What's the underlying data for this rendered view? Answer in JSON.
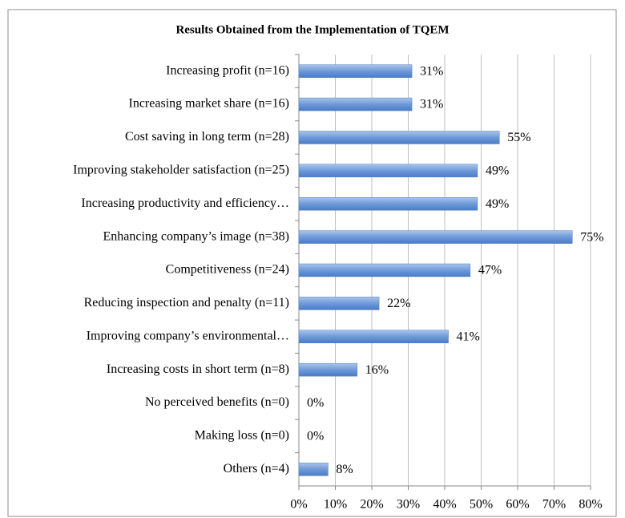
{
  "chart_data": {
    "type": "hbar",
    "title": "Results Obtained from the Implementation of TQEM",
    "categories": [
      "Increasing profit (n=16)",
      "Increasing market share (n=16)",
      "Cost saving in long term (n=28)",
      "Improving stakeholder satisfaction (n=25)",
      "Increasing productivity and efficiency…",
      "Enhancing company’s image (n=38)",
      "Competitiveness (n=24)",
      "Reducing inspection and penalty (n=11)",
      "Improving company’s environmental…",
      "Increasing costs in short term (n=8)",
      "No perceived benefits (n=0)",
      "Making loss (n=0)",
      "Others (n=4)"
    ],
    "values": [
      31,
      31,
      55,
      49,
      49,
      75,
      47,
      22,
      41,
      16,
      0,
      0,
      8
    ],
    "value_labels": [
      "31%",
      "31%",
      "55%",
      "49%",
      "49%",
      "75%",
      "47%",
      "22%",
      "41%",
      "16%",
      "0%",
      "0%",
      "8%"
    ],
    "color": "#4f81bd",
    "xlim": [
      0,
      80
    ],
    "xticks": [
      {
        "value": 0,
        "label": "0%"
      },
      {
        "value": 10,
        "label": "10%"
      },
      {
        "value": 20,
        "label": "20%"
      },
      {
        "value": 30,
        "label": "30%"
      },
      {
        "value": 40,
        "label": "40%"
      },
      {
        "value": 50,
        "label": "50%"
      },
      {
        "value": 60,
        "label": "60%"
      },
      {
        "value": 70,
        "label": "70%"
      },
      {
        "value": 80,
        "label": "80%"
      }
    ],
    "grid": true
  }
}
